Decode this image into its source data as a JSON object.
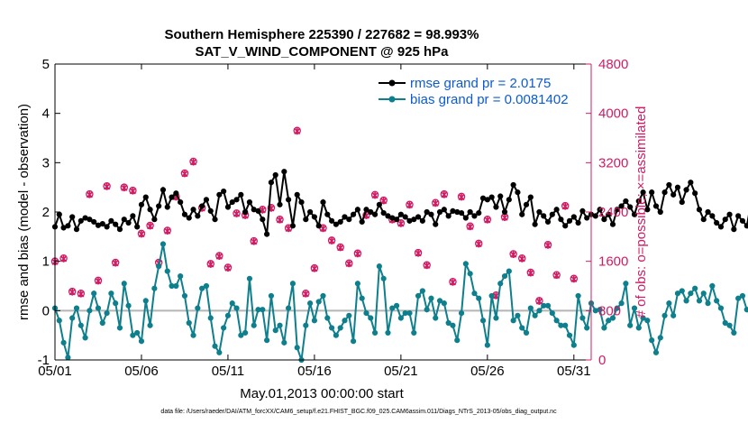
{
  "chart_data": {
    "type": "line",
    "title": "Southern Hemisphere 225390 / 227682 = 98.993%",
    "subtitle": "SAT_V_WIND_COMPONENT @ 925 hPa",
    "xlabel": "May.01,2013 00:00:00 start",
    "ylabel": "rmse and bias (model - observation)",
    "y2label": "# of obs: o=possible; ×=assimilated",
    "footnote": "data file: /Users/raeder/DAI/ATM_forcXX/CAM6_setup/f.e21.FHIST_BGC.f09_025.CAM6assim.011/Diags_NTrS_2013-05/obs_diag_output.nc",
    "xlim": [
      1,
      32
    ],
    "ylim": [
      -1,
      5
    ],
    "y2lim": [
      0,
      4800
    ],
    "x_ticks": [
      1,
      6,
      11,
      16,
      21,
      26,
      31
    ],
    "x_tick_labels": [
      "05/01",
      "05/06",
      "05/11",
      "05/16",
      "05/21",
      "05/26",
      "05/31"
    ],
    "y_ticks": [
      -1,
      0,
      1,
      2,
      3,
      4,
      5
    ],
    "y2_ticks": [
      0,
      800,
      1600,
      2400,
      3200,
      4000,
      4800
    ],
    "zero_line": 0,
    "colors": {
      "rmse": "#000000",
      "bias": "#0e7f8c",
      "obs": "#d01c64",
      "legend_text": "#0a5bd6",
      "zero_line": "#b5b5b5"
    },
    "legend": [
      {
        "label": "rmse grand pr = 2.0175",
        "series": "rmse"
      },
      {
        "label": "bias grand pr = 0.0081402",
        "series": "bias"
      }
    ],
    "series": [
      {
        "name": "rmse",
        "x_start": 1,
        "x_step": 0.25,
        "values": [
          1.7,
          1.95,
          1.68,
          1.72,
          1.9,
          1.65,
          1.82,
          1.88,
          1.85,
          1.8,
          1.73,
          1.76,
          1.7,
          1.82,
          1.75,
          1.65,
          1.85,
          1.78,
          1.92,
          1.7,
          2.15,
          2.3,
          2.05,
          1.85,
          2.12,
          2.45,
          2.1,
          2.3,
          2.38,
          2.2,
          1.95,
          1.88,
          2.05,
          1.92,
          2.12,
          2.25,
          2.02,
          1.85,
          2.35,
          2.42,
          2.1,
          2.2,
          2.25,
          2.35,
          2.0,
          2.2,
          2.05,
          2.02,
          1.85,
          1.55,
          2.6,
          2.75,
          2.15,
          2.82,
          2.25,
          1.72,
          2.35,
          2.2,
          1.85,
          2.0,
          1.9,
          1.72,
          2.2,
          1.95,
          1.82,
          1.75,
          1.8,
          1.9,
          1.85,
          1.95,
          2.05,
          1.8,
          2.05,
          2.0,
          1.95,
          2.15,
          1.98,
          1.92,
          1.88,
          1.85,
          1.95,
          1.9,
          1.82,
          1.85,
          1.9,
          1.82,
          2.0,
          1.95,
          1.75,
          2.0,
          2.05,
          1.92,
          2.02,
          2.0,
          1.98,
          1.88,
          2.0,
          1.92,
          1.98,
          2.28,
          2.25,
          2.3,
          2.1,
          2.32,
          2.0,
          2.25,
          2.55,
          2.4,
          1.95,
          2.15,
          2.3,
          1.75,
          2.0,
          1.92,
          1.8,
          1.95,
          2.05,
          1.85,
          1.72,
          1.82,
          1.9,
          1.78,
          2.02,
          1.88,
          1.95,
          1.92,
          2.05,
          1.85,
          1.95,
          1.75,
          2.05,
          2.12,
          2.22,
          2.1,
          1.95,
          2.22,
          2.4,
          2.05,
          2.4,
          2.12,
          2.0,
          2.4,
          2.55,
          2.35,
          2.5,
          2.2,
          2.45,
          2.6,
          2.38,
          2.05,
          1.85,
          2.0,
          1.92,
          1.78,
          1.7,
          1.85,
          1.95,
          1.65,
          1.92,
          1.82,
          1.72,
          2.2,
          1.95
        ]
      },
      {
        "name": "bias",
        "x_start": 1,
        "x_step": 0.25,
        "values": [
          0.05,
          -0.2,
          -0.65,
          -0.95,
          -0.15,
          0.05,
          -0.3,
          -0.55,
          0.0,
          0.35,
          0.05,
          -0.25,
          -0.05,
          0.35,
          0.15,
          -0.35,
          0.55,
          0.1,
          -0.5,
          -0.45,
          -0.62,
          0.2,
          -0.3,
          0.45,
          0.9,
          1.35,
          0.8,
          0.5,
          0.5,
          0.7,
          0.3,
          -0.25,
          -0.5,
          0.05,
          0.45,
          0.5,
          -0.15,
          -0.72,
          -0.85,
          -0.35,
          -0.1,
          0.15,
          0.05,
          -0.5,
          -0.45,
          0.65,
          -0.3,
          0.02,
          0.02,
          -0.6,
          0.3,
          -0.4,
          -0.3,
          -0.65,
          0.05,
          0.55,
          -0.75,
          -1.0,
          -0.3,
          0.15,
          -0.2,
          0.18,
          0.3,
          -0.15,
          -0.35,
          -0.5,
          -0.35,
          -0.2,
          -0.1,
          -0.62,
          0.55,
          0.25,
          -0.05,
          -0.15,
          -0.45,
          0.9,
          0.65,
          -0.45,
          0.05,
          0.1,
          -0.15,
          -0.05,
          -0.05,
          -0.45,
          0.3,
          0.4,
          0.02,
          0.25,
          -0.15,
          0.2,
          0.15,
          -0.25,
          -0.3,
          -0.6,
          -0.05,
          0.95,
          0.75,
          0.35,
          0.25,
          -0.2,
          -0.7,
          0.3,
          -0.15,
          0.55,
          0.7,
          0.8,
          -0.2,
          -0.1,
          -0.35,
          -0.45,
          0.05,
          -0.1,
          0.0,
          0.1,
          0.1,
          -0.05,
          -0.2,
          -0.3,
          -0.3,
          -0.5,
          -0.7,
          0.3,
          -0.15,
          -0.35,
          0.15,
          0.0,
          0.02,
          -0.35,
          -0.2,
          -0.15,
          0.05,
          0.15,
          0.55,
          -0.3,
          0.05,
          -0.35,
          -0.15,
          -0.2,
          -0.6,
          -0.85,
          -0.55,
          -0.1,
          0.15,
          -0.1,
          0.35,
          0.4,
          0.2,
          0.35,
          0.45,
          0.2,
          0.35,
          0.15,
          0.5,
          0.2,
          0.05,
          -0.25,
          -0.3,
          -0.45,
          0.25,
          0.3,
          0.02,
          -0.05,
          -0.1,
          -0.2,
          -0.6
        ]
      },
      {
        "name": "obs_possible",
        "axis": "right",
        "marker": "o",
        "x_start": 1,
        "x_step": 0.5,
        "values": [
          1600,
          1650,
          1110,
          1080,
          2690,
          1290,
          2820,
          1580,
          2800,
          2750,
          2050,
          2180,
          1580,
          2100,
          2650,
          3030,
          3220,
          2470,
          1560,
          1690,
          1500,
          2380,
          2350,
          1930,
          2440,
          2470,
          2280,
          2140,
          3720,
          1080,
          1490,
          2140,
          1940,
          1830,
          1570,
          1730,
          2350,
          2680,
          2590,
          2280,
          2220,
          2520,
          1740,
          1540,
          2550,
          2690,
          1270,
          2650,
          2170,
          1890,
          2280,
          1050,
          2320,
          1720,
          1650,
          1420,
          960,
          1870,
          1380,
          2500,
          1320
        ]
      },
      {
        "name": "obs_assimilated",
        "axis": "right",
        "marker": "x",
        "x_start": 1,
        "x_step": 0.5,
        "values": [
          1590,
          1640,
          1100,
          1070,
          2680,
          1280,
          2810,
          1570,
          2790,
          2740,
          2040,
          2170,
          1570,
          2090,
          2640,
          3020,
          3210,
          2460,
          1550,
          1680,
          1490,
          2370,
          2340,
          1920,
          2430,
          2460,
          2270,
          2130,
          3710,
          1070,
          1480,
          2130,
          1930,
          1820,
          1560,
          1720,
          2340,
          2670,
          2580,
          2270,
          2210,
          2510,
          1730,
          1530,
          2540,
          2680,
          1260,
          2640,
          2160,
          1880,
          2270,
          1040,
          2310,
          1710,
          1640,
          1410,
          950,
          1860,
          1370,
          2490,
          1310
        ]
      }
    ]
  }
}
